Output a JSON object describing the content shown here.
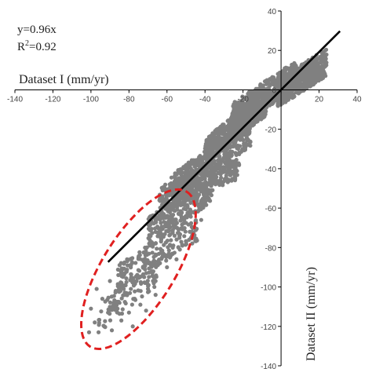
{
  "chart_data": {
    "type": "scatter",
    "title": "",
    "xlabel": "Dataset I (mm/yr)",
    "ylabel": "Dataset II (mm/yr)",
    "xlim": [
      -140,
      40
    ],
    "ylim": [
      -140,
      40
    ],
    "x_ticks": [
      -140,
      -120,
      -100,
      -80,
      -60,
      -40,
      -20,
      0,
      20,
      40
    ],
    "y_ticks": [
      40,
      20,
      0,
      -20,
      -40,
      -60,
      -80,
      -100,
      -120,
      -140
    ],
    "x_tick_labels": [
      "-140",
      "-120",
      "-100",
      "-80",
      "-60",
      "-40",
      "-20",
      "0",
      "20",
      "40"
    ],
    "y_tick_labels": [
      "40",
      "20",
      "0",
      "-20",
      "-40",
      "-60",
      "-80",
      "-100",
      "-120",
      "-140"
    ],
    "regression": {
      "equation": "y=0.96x",
      "r2_label": "R²=0.92",
      "r2_prefix": "R",
      "r2_sup": "2",
      "r2_suffix": "=0.92",
      "slope": 0.96,
      "intercept": 0,
      "x_range": [
        -91,
        31
      ]
    },
    "highlight_ellipse": {
      "center": [
        -75,
        -91
      ],
      "semi_major": 48,
      "semi_minor": 10,
      "rotation_deg": -58,
      "color": "#e02020",
      "style": "dashed"
    },
    "series": [
      {
        "point_color": "#808080",
        "cloud_segments": [
          {
            "x": [
              -2,
              24
            ],
            "y": [
              -2,
              14
            ],
            "count": 500
          },
          {
            "x": [
              -26,
              8
            ],
            "y": [
              -14,
              8
            ],
            "count": 550
          },
          {
            "x": [
              -40,
              -8
            ],
            "y": [
              -32,
              -6
            ],
            "count": 500
          },
          {
            "x": [
              -58,
              -16
            ],
            "y": [
              -50,
              -22
            ],
            "count": 450
          },
          {
            "x": [
              -64,
              -22
            ],
            "y": [
              -56,
              -38
            ],
            "count": 350
          },
          {
            "x": [
              -70,
              -36
            ],
            "y": [
              -72,
              -50
            ],
            "count": 260
          },
          {
            "x": [
              -86,
              -44
            ],
            "y": [
              -96,
              -70
            ],
            "count": 200
          },
          {
            "x": [
              -96,
              -64
            ],
            "y": [
              -116,
              -92
            ],
            "count": 90
          }
        ],
        "outliers": [
          [
            -98,
            -118
          ],
          [
            -96,
            -123
          ],
          [
            -93,
            -120
          ],
          [
            -91,
            -113
          ],
          [
            -89,
            -122
          ],
          [
            -88,
            -108
          ],
          [
            -86,
            -111
          ],
          [
            -84,
            -117
          ],
          [
            -82,
            -104
          ],
          [
            -80,
            -113
          ],
          [
            -79,
            -101
          ],
          [
            -77,
            -106
          ],
          [
            -76,
            -97
          ],
          [
            -74,
            -109
          ],
          [
            -72,
            -95
          ],
          [
            -70,
            -101
          ],
          [
            -68,
            -92
          ],
          [
            -66,
            -97
          ],
          [
            -64,
            -88
          ],
          [
            -62,
            -83
          ],
          [
            -60,
            -90
          ],
          [
            -58,
            -79
          ],
          [
            -56,
            -74
          ],
          [
            -54,
            -80
          ],
          [
            -52,
            -70
          ],
          [
            -50,
            -64
          ],
          [
            -48,
            -72
          ],
          [
            -46,
            -62
          ],
          [
            -44,
            -58
          ],
          [
            -90,
            -97
          ],
          [
            -84,
            -92
          ],
          [
            -94,
            -106
          ],
          [
            -100,
            -111
          ],
          [
            -97,
            -101
          ],
          [
            -81,
            -86
          ],
          [
            -75,
            -85
          ],
          [
            -69,
            -79
          ],
          [
            -60,
            -68
          ],
          [
            -38,
            -56
          ],
          [
            -42,
            -66
          ],
          [
            -101,
            -123
          ],
          [
            -78,
            -120
          ],
          [
            -85,
            -99
          ],
          [
            -63,
            -76
          ],
          [
            -55,
            -86
          ],
          [
            -71,
            -112
          ],
          [
            -66,
            -104
          ],
          [
            -87,
            -102
          ]
        ]
      }
    ]
  }
}
